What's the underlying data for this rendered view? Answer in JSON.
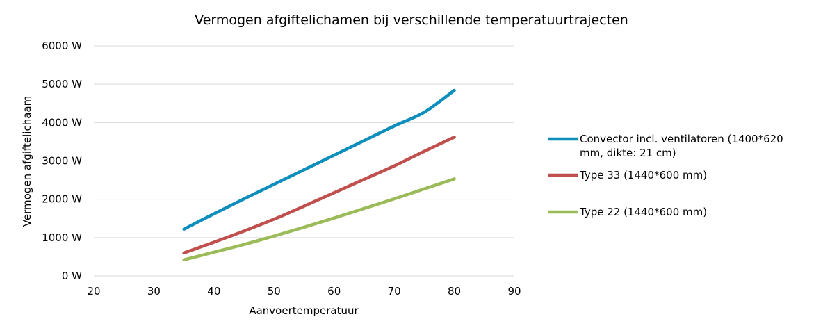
{
  "chart_data": {
    "type": "line",
    "title": "Vermogen afgiftelichamen bij verschillende temperatuurtrajecten",
    "xlabel": "Aanvoertemperatuur",
    "ylabel": "Vermogen afgiftelichaam",
    "xlim": [
      20,
      90
    ],
    "ylim": [
      0,
      6000
    ],
    "x_ticks": [
      "20",
      "30",
      "40",
      "50",
      "60",
      "70",
      "80",
      "90"
    ],
    "y_ticks": [
      "0 W",
      "1000 W",
      "2000 W",
      "3000 W",
      "4000 W",
      "5000 W",
      "6000 W"
    ],
    "grid": "horizontal",
    "legend_position": "right",
    "series": [
      {
        "name_lines": [
          "Convector incl. ventilatoren (1400*620",
          "mm, dikte: 21 cm)"
        ],
        "color": "#0e8ebc",
        "x": [
          35,
          40,
          45,
          50,
          55,
          60,
          65,
          70,
          75,
          80
        ],
        "values": [
          1220,
          1620,
          2010,
          2390,
          2770,
          3150,
          3530,
          3910,
          4270,
          4840
        ]
      },
      {
        "name_lines": [
          "Type 33 (1440*600 mm)"
        ],
        "color": "#c0504d",
        "x": [
          35,
          40,
          45,
          50,
          55,
          60,
          65,
          70,
          75,
          80
        ],
        "values": [
          600,
          880,
          1170,
          1480,
          1820,
          2170,
          2520,
          2870,
          3250,
          3620
        ]
      },
      {
        "name_lines": [
          "Type 22 (1440*600 mm)"
        ],
        "color": "#9bbb59",
        "x": [
          35,
          40,
          45,
          50,
          55,
          60,
          65,
          70,
          75,
          80
        ],
        "values": [
          420,
          620,
          820,
          1040,
          1270,
          1510,
          1760,
          2010,
          2270,
          2530
        ]
      }
    ]
  }
}
